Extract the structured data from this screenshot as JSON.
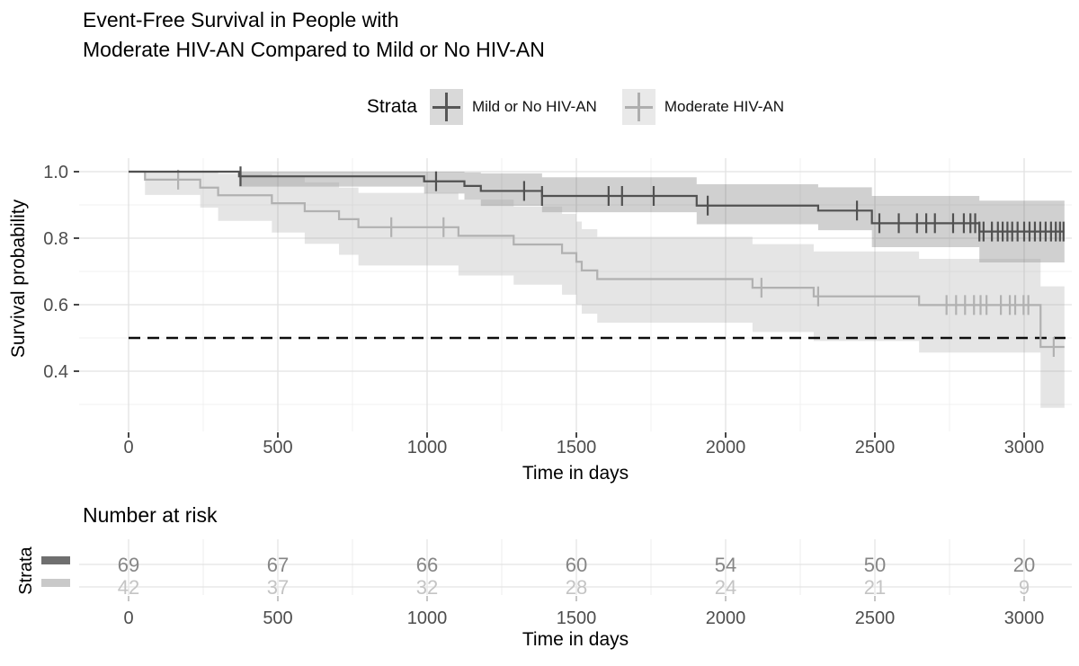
{
  "title": {
    "line1": "Event-Free Survival in People with",
    "line2": "Moderate HIV-AN Compared to Mild or No HIV-AN"
  },
  "legend": {
    "title": "Strata",
    "items": [
      {
        "label": "Mild or No HIV-AN",
        "key_bg": "#d9d9d9",
        "cross_color": "#575757"
      },
      {
        "label": "Moderate HIV-AN",
        "key_bg": "#e9e9e9",
        "cross_color": "#aeaeae"
      }
    ]
  },
  "axes": {
    "y_label": "Survival probability",
    "x_label": "Time in days",
    "tick_color": "#4d4d4d"
  },
  "risk_table": {
    "heading": "Number at risk",
    "axis_label": "Strata",
    "x_label": "Time in days",
    "x_ticks": [
      0,
      500,
      1000,
      1500,
      2000,
      2500,
      3000
    ],
    "rows": [
      {
        "name": "Mild or No HIV-AN",
        "swatch": "#6f6f6f",
        "text_color": "#868686",
        "values": [
          69,
          67,
          66,
          60,
          54,
          50,
          20
        ]
      },
      {
        "name": "Moderate HIV-AN",
        "swatch": "#c9c9c9",
        "text_color": "#c4c4c4",
        "values": [
          42,
          37,
          32,
          28,
          24,
          21,
          9
        ]
      }
    ]
  },
  "chart_data": {
    "type": "line",
    "subtype": "kaplan-meier-step",
    "title": "Event-Free Survival in People with Moderate HIV-AN Compared to Mild or No HIV-AN",
    "xlabel": "Time in days",
    "ylabel": "Survival probability",
    "xlim": [
      0,
      3135
    ],
    "ylim": [
      0.22,
      1.04
    ],
    "x_major_ticks": [
      0,
      500,
      1000,
      1500,
      2000,
      2500,
      3000
    ],
    "x_minor_ticks": [
      250,
      750,
      1250,
      1750,
      2250,
      2750
    ],
    "y_major_ticks": [
      0.4,
      0.6,
      0.8,
      1.0
    ],
    "y_minor_ticks": [
      0.3,
      0.5,
      0.7,
      0.9
    ],
    "grid": true,
    "legend_position": "top",
    "reference_line": {
      "y": 0.5,
      "style": "dashed",
      "color": "#0d0d0d"
    },
    "series": [
      {
        "name": "Mild or No HIV-AN",
        "color": "#515151",
        "ci_fill": "rgba(85,85,85,0.28)",
        "end_time": 3135,
        "steps": [
          [
            0,
            1.0
          ],
          [
            370,
            0.986
          ],
          [
            990,
            0.971
          ],
          [
            1125,
            0.957
          ],
          [
            1180,
            0.942
          ],
          [
            1385,
            0.927
          ],
          [
            1903,
            0.898
          ],
          [
            2310,
            0.883
          ],
          [
            2490,
            0.845
          ],
          [
            2850,
            0.82
          ]
        ],
        "censor_times": [
          375,
          1030,
          1325,
          1385,
          1608,
          1653,
          1759,
          1940,
          2440,
          2515,
          2580,
          2641,
          2672,
          2701,
          2762,
          2798,
          2820,
          2836,
          2850,
          2864,
          2892,
          2912,
          2928,
          2944,
          2960,
          2978,
          3000,
          3018,
          3036,
          3054,
          3072,
          3090,
          3106,
          3120,
          3132
        ],
        "ci": [
          [
            0,
            1.0,
            1.0
          ],
          [
            370,
            0.955,
            1.0
          ],
          [
            990,
            0.934,
            1.0
          ],
          [
            1125,
            0.916,
            0.998
          ],
          [
            1180,
            0.897,
            0.995
          ],
          [
            1385,
            0.878,
            0.983
          ],
          [
            1903,
            0.842,
            0.962
          ],
          [
            2310,
            0.824,
            0.953
          ],
          [
            2490,
            0.773,
            0.927
          ],
          [
            2850,
            0.727,
            0.913
          ]
        ]
      },
      {
        "name": "Moderate HIV-AN",
        "color": "#b1b1b1",
        "ci_fill": "rgba(160,160,160,0.28)",
        "end_time": 3135,
        "steps": [
          [
            0,
            1.0
          ],
          [
            55,
            0.976
          ],
          [
            240,
            0.952
          ],
          [
            300,
            0.929
          ],
          [
            480,
            0.905
          ],
          [
            590,
            0.881
          ],
          [
            705,
            0.857
          ],
          [
            770,
            0.833
          ],
          [
            1105,
            0.807
          ],
          [
            1290,
            0.781
          ],
          [
            1452,
            0.755
          ],
          [
            1500,
            0.729
          ],
          [
            1518,
            0.703
          ],
          [
            1570,
            0.677
          ],
          [
            2090,
            0.651
          ],
          [
            2295,
            0.625
          ],
          [
            2648,
            0.599
          ],
          [
            3055,
            0.473
          ]
        ],
        "censor_times": [
          166,
          880,
          1055,
          2120,
          2310,
          2740,
          2772,
          2802,
          2832,
          2854,
          2874,
          2922,
          2952,
          2970,
          2998,
          3014,
          3099
        ],
        "ci": [
          [
            0,
            1.0,
            1.0
          ],
          [
            55,
            0.93,
            1.0
          ],
          [
            240,
            0.892,
            1.0
          ],
          [
            300,
            0.852,
            0.994
          ],
          [
            480,
            0.817,
            0.983
          ],
          [
            590,
            0.783,
            0.968
          ],
          [
            705,
            0.75,
            0.952
          ],
          [
            770,
            0.718,
            0.936
          ],
          [
            1105,
            0.688,
            0.916
          ],
          [
            1290,
            0.66,
            0.895
          ],
          [
            1452,
            0.63,
            0.873
          ],
          [
            1500,
            0.601,
            0.85
          ],
          [
            1518,
            0.573,
            0.827
          ],
          [
            1570,
            0.546,
            0.804
          ],
          [
            2090,
            0.518,
            0.782
          ],
          [
            2295,
            0.491,
            0.76
          ],
          [
            2648,
            0.456,
            0.738
          ],
          [
            3055,
            0.29,
            0.655
          ]
        ]
      }
    ]
  }
}
